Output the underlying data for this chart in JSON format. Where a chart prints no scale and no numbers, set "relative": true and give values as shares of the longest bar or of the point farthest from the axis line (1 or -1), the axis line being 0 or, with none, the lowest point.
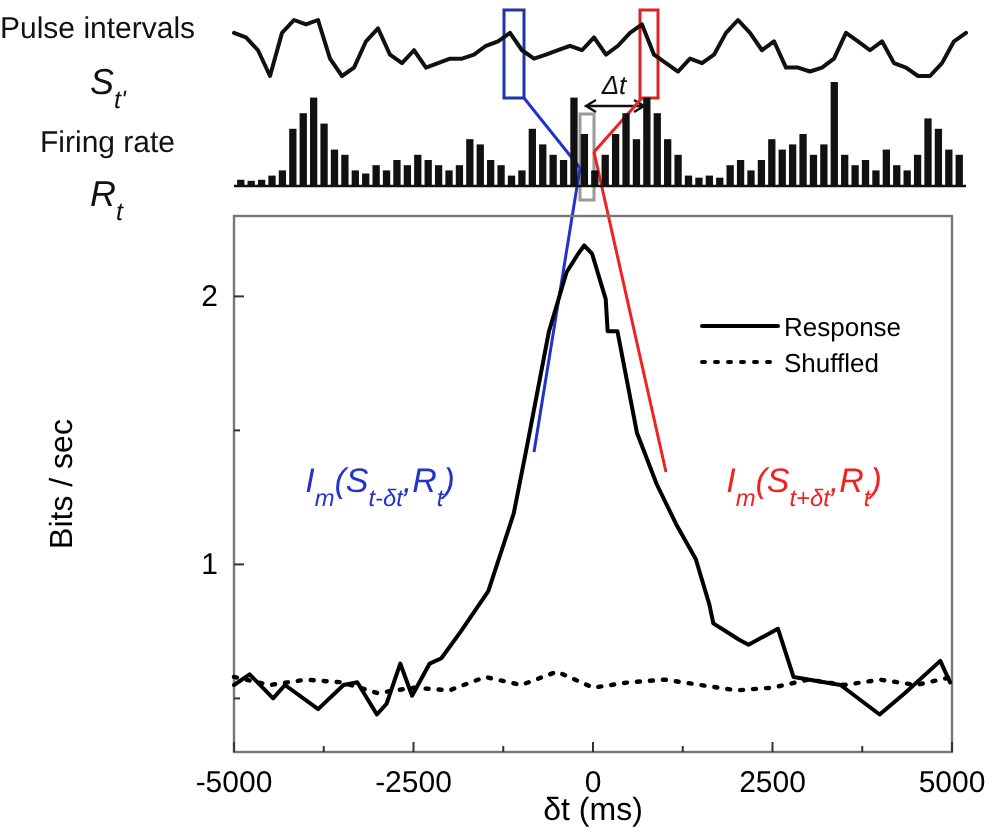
{
  "chart_data": [
    {
      "type": "line",
      "relative": true,
      "categories": [
        null,
        null,
        null,
        null,
        null,
        null,
        null,
        null,
        null,
        null,
        null,
        null,
        null,
        null,
        null,
        null,
        null,
        null,
        null,
        null,
        null,
        null,
        null,
        null,
        null,
        null,
        null,
        null,
        null,
        null,
        null,
        null,
        null,
        null,
        null,
        null,
        null,
        null,
        null,
        null,
        null,
        null,
        null,
        null,
        null,
        null,
        null,
        null,
        null,
        null,
        null,
        null,
        null,
        null,
        null,
        null,
        null,
        null,
        null,
        null,
        null,
        null
      ],
      "series": [
        {
          "color": "#111111",
          "values": [
            0.77,
            0.69,
            0.46,
            0,
            0.77,
            1,
            0.92,
            1,
            0.31,
            0,
            0.15,
            0.62,
            0.85,
            0.38,
            0.23,
            0.46,
            0.15,
            0.23,
            0.31,
            0.31,
            0.38,
            0.54,
            0.62,
            0.77,
            0.46,
            0.31,
            0.38,
            0.46,
            0.54,
            0.46,
            0.69,
            0.38,
            0.54,
            0.77,
            0.92,
            0.38,
            0.23,
            0.08,
            0.31,
            0.23,
            0.38,
            0.77,
            1,
            0.77,
            0.46,
            0.62,
            0.15,
            0.15,
            0.08,
            0.15,
            0.31,
            0.77,
            0.62,
            0.46,
            0.62,
            0.23,
            0.15,
            0,
            0,
            0.23,
            0.62,
            0.77
          ]
        }
      ],
      "annotations": [
        "Pulse intervals",
        "S$_{t'}$"
      ]
    },
    {
      "type": "bar",
      "relative": true,
      "color": "#111111",
      "categories": [
        null,
        null,
        null,
        null,
        null,
        null,
        null,
        null,
        null,
        null,
        null,
        null,
        null,
        null,
        null,
        null,
        null,
        null,
        null,
        null,
        null,
        null,
        null,
        null,
        null,
        null,
        null,
        null,
        null,
        null,
        null,
        null,
        null,
        null,
        null,
        null,
        null,
        null,
        null,
        null,
        null,
        null,
        null,
        null,
        null,
        null,
        null,
        null,
        null,
        null,
        null,
        null,
        null,
        null,
        null,
        null,
        null,
        null,
        null,
        null,
        null,
        null,
        null,
        null,
        null,
        null,
        null,
        null,
        null,
        null
      ],
      "values": [
        0.06,
        0.05,
        0.06,
        0.1,
        0.15,
        0.55,
        0.7,
        0.85,
        0.6,
        0.35,
        0.3,
        0.15,
        0.12,
        0.2,
        0.15,
        0.25,
        0.2,
        0.3,
        0.25,
        0.2,
        0.15,
        0.2,
        0.45,
        0.4,
        0.25,
        0.2,
        0.1,
        0.15,
        0.55,
        0.4,
        0.3,
        0.25,
        0.85,
        0.5,
        0.15,
        0.3,
        0.5,
        0.7,
        0.45,
        0.85,
        0.7,
        0.45,
        0.3,
        0.1,
        0.08,
        0.1,
        0.08,
        0.2,
        0.25,
        0.15,
        0.25,
        0.45,
        0.35,
        0.4,
        0.5,
        0.3,
        0.4,
        1,
        0.3,
        0.2,
        0.25,
        0.15,
        0.35,
        0.2,
        0.15,
        0.3,
        0.65,
        0.55,
        0.35,
        0.3
      ],
      "annotations": [
        "Firing rate",
        "R$_{t}$",
        "Δt"
      ]
    },
    {
      "type": "line",
      "xlabel": "δt (ms)",
      "ylabel": "Bits / sec",
      "xlim": [
        -5000,
        5000
      ],
      "ylim": [
        0.3,
        2.3
      ],
      "xticks": [
        -5000,
        {
          "value": -3750,
          "label": null
        },
        -2500,
        {
          "value": -1250,
          "label": null
        },
        0,
        {
          "value": 1250,
          "label": null
        },
        2500,
        {
          "value": 3750,
          "label": null
        },
        5000
      ],
      "yticks": [
        {
          "value": 0.5,
          "label": null
        },
        1,
        {
          "value": 1.5,
          "label": null
        },
        2
      ],
      "legend": "top right",
      "series": [
        {
          "name": "Response",
          "color": "#000000",
          "line_style": "solid",
          "x": [
            -5000,
            -4782,
            -4455,
            -4290,
            -3828,
            -3474,
            -3283,
            -3010,
            -2875,
            -2684,
            -2520,
            -2275,
            -2112,
            -1840,
            -1458,
            -1104,
            -913,
            -613,
            -368,
            -204,
            -123,
            -14,
            177,
            204,
            340,
            613,
            886,
            1158,
            1431,
            1621,
            1676,
            2030,
            2166,
            2575,
            2793,
            3447,
            3992,
            4346,
            4837,
            4973
          ],
          "values": [
            0.55,
            0.59,
            0.5,
            0.55,
            0.46,
            0.55,
            0.56,
            0.44,
            0.48,
            0.63,
            0.51,
            0.63,
            0.65,
            0.75,
            0.9,
            1.19,
            1.45,
            1.87,
            2.09,
            2.16,
            2.19,
            2.16,
            1.99,
            1.87,
            1.87,
            1.49,
            1.3,
            1.15,
            1.02,
            0.85,
            0.78,
            0.72,
            0.7,
            0.76,
            0.58,
            0.55,
            0.44,
            0.52,
            0.64,
            0.56
          ]
        },
        {
          "name": "Shuffled",
          "color": "#000000",
          "line_style": "dotted",
          "x": [
            -5000,
            -4500,
            -4000,
            -3500,
            -3000,
            -2500,
            -2000,
            -1500,
            -1000,
            -500,
            0,
            500,
            1000,
            1500,
            2000,
            2500,
            3000,
            3500,
            4000,
            4500,
            5000
          ],
          "values": [
            0.58,
            0.55,
            0.57,
            0.56,
            0.52,
            0.54,
            0.53,
            0.58,
            0.55,
            0.6,
            0.54,
            0.56,
            0.57,
            0.55,
            0.53,
            0.54,
            0.57,
            0.55,
            0.57,
            0.55,
            0.58
          ]
        }
      ],
      "annotations": [
        "I$_{m}$(S$_{t-δt}$,R$_{t}$)",
        "I$_{m}$(S$_{t+δt}$,R$_{t}$)"
      ]
    }
  ]
}
